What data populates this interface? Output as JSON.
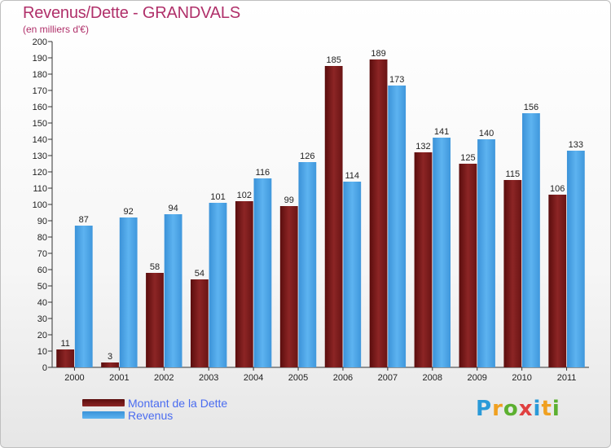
{
  "title": "Revenus/Dette - GRANDVALS",
  "subtitle": "(en milliers d'€)",
  "logo": {
    "text": "Proxiti",
    "letters": [
      {
        "ch": "P",
        "color": "#2a9ad8"
      },
      {
        "ch": "r",
        "color": "#f0a020"
      },
      {
        "ch": "o",
        "color": "#5cb030"
      },
      {
        "ch": "x",
        "color": "#e04040"
      },
      {
        "ch": "i",
        "color": "#2a9ad8"
      },
      {
        "ch": "t",
        "color": "#f0a020"
      },
      {
        "ch": "i",
        "color": "#5cb030"
      }
    ]
  },
  "chart_data": {
    "type": "bar",
    "title": "Revenus/Dette - GRANDVALS",
    "subtitle": "(en milliers d'€)",
    "categories": [
      "2000",
      "2001",
      "2002",
      "2003",
      "2004",
      "2005",
      "2006",
      "2007",
      "2008",
      "2009",
      "2010",
      "2011"
    ],
    "series": [
      {
        "name": "Montant de la Dette",
        "color": "#7a1a1a",
        "values": [
          11,
          3,
          58,
          54,
          102,
          99,
          185,
          189,
          132,
          125,
          115,
          106
        ]
      },
      {
        "name": "Revenus",
        "color": "#4aa3e6",
        "values": [
          87,
          92,
          94,
          101,
          116,
          126,
          114,
          173,
          141,
          140,
          156,
          133
        ]
      }
    ],
    "ylim": [
      0,
      200
    ],
    "yticks": [
      0,
      10,
      20,
      30,
      40,
      50,
      60,
      70,
      80,
      90,
      100,
      110,
      120,
      130,
      140,
      150,
      160,
      170,
      180,
      190,
      200
    ],
    "grid": false,
    "legend": "bottom-left"
  }
}
